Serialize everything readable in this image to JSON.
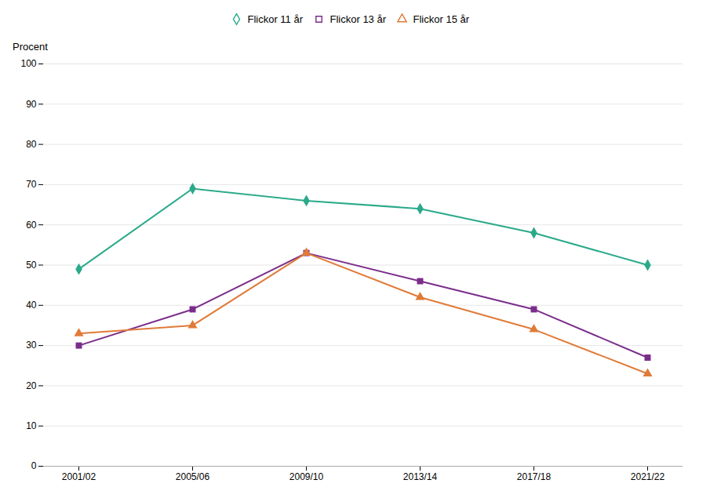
{
  "chart_data": {
    "type": "line",
    "ylabel": "Procent",
    "categories": [
      "2001/02",
      "2005/06",
      "2009/10",
      "2013/14",
      "2017/18",
      "2021/22"
    ],
    "series": [
      {
        "name": "Flickor 11 år",
        "color": "#2aaa8a",
        "marker": "diamond",
        "values": [
          49,
          69,
          66,
          64,
          58,
          50
        ]
      },
      {
        "name": "Flickor 13 år",
        "color": "#7b2d8b",
        "marker": "square",
        "values": [
          30,
          39,
          53,
          46,
          39,
          27
        ]
      },
      {
        "name": "Flickor 15 år",
        "color": "#e07b39",
        "marker": "triangle",
        "values": [
          33,
          35,
          53,
          42,
          34,
          23
        ]
      }
    ],
    "ylim": [
      0,
      100
    ],
    "yticks": [
      0,
      10,
      20,
      30,
      40,
      50,
      60,
      70,
      80,
      90,
      100
    ],
    "grid": true,
    "legend": "top"
  }
}
